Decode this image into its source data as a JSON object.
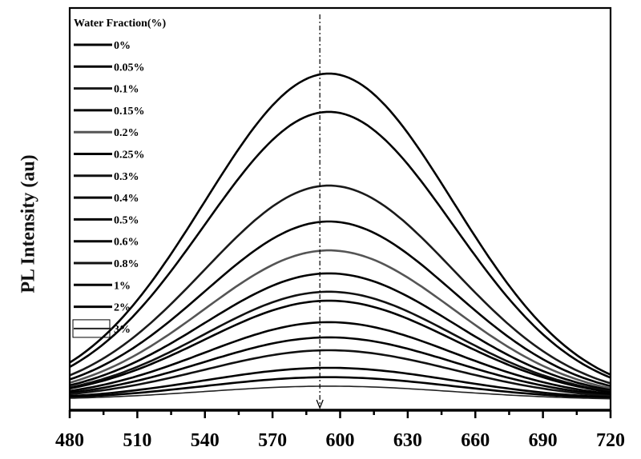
{
  "chart_data": {
    "type": "line",
    "title": "",
    "xlabel": "",
    "ylabel": "PL Intensity (au)",
    "xlim": [
      480,
      720
    ],
    "ylim": [
      0,
      100
    ],
    "x_ticks": [
      480,
      510,
      540,
      570,
      600,
      630,
      660,
      690,
      720
    ],
    "peak_wavelength": 595,
    "fwhm_nm": 130,
    "marker_wavelength": 591,
    "legend_title": "Water Fraction(%)",
    "legend_position": "top-left",
    "series": [
      {
        "name": "0%",
        "peak": 83.6,
        "color": "#000000"
      },
      {
        "name": "0.05%",
        "peak": 73.8,
        "color": "#000000"
      },
      {
        "name": "0.1%",
        "peak": 54.9,
        "color": "#1a1a1a"
      },
      {
        "name": "0.15%",
        "peak": 45.7,
        "color": "#000000"
      },
      {
        "name": "0.2%",
        "peak": 38.3,
        "color": "#555555"
      },
      {
        "name": "0.25%",
        "peak": 32.4,
        "color": "#000000"
      },
      {
        "name": "0.3%",
        "peak": 27.7,
        "color": "#111111"
      },
      {
        "name": "0.4%",
        "peak": 25.4,
        "color": "#000000"
      },
      {
        "name": "0.5%",
        "peak": 19.9,
        "color": "#000000"
      },
      {
        "name": "0.6%",
        "peak": 16.0,
        "color": "#000000"
      },
      {
        "name": "0.8%",
        "peak": 12.7,
        "color": "#111111"
      },
      {
        "name": "1%",
        "peak": 8.2,
        "color": "#000000"
      },
      {
        "name": "2%",
        "peak": 5.8,
        "color": "#000000"
      },
      {
        "name": "3%",
        "peak": 3.5,
        "color": "#222222"
      }
    ]
  }
}
